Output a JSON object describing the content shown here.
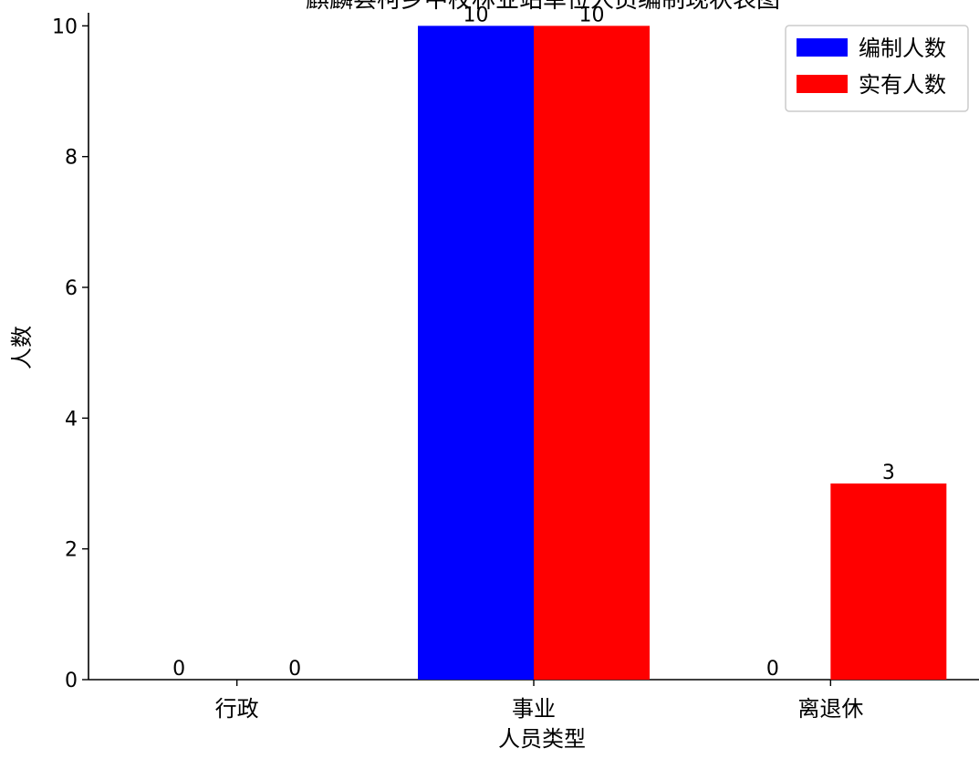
{
  "chart_data": {
    "type": "bar",
    "title": "麒麟县柯乡中校林业站单位人员编制现状表图",
    "xlabel": "人员类型",
    "ylabel": "人数",
    "categories": [
      "行政",
      "事业",
      "离退休"
    ],
    "series": [
      {
        "name": "编制人数",
        "color": "#0000ff",
        "values": [
          0,
          10,
          0
        ]
      },
      {
        "name": "实有人数",
        "color": "#ff0000",
        "values": [
          0,
          10,
          3
        ]
      }
    ],
    "ylim": [
      0,
      10.2
    ],
    "yticks": [
      0,
      2,
      4,
      6,
      8,
      10
    ],
    "legend_position": "top-right",
    "grid": false,
    "data_labels": true
  }
}
